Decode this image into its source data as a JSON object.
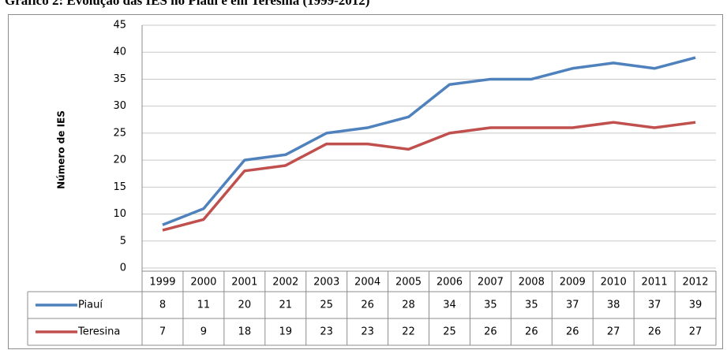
{
  "chart_data": {
    "type": "line",
    "title": "Gráfico 2: Evolução das IES no Piauí e em Teresina (1999-2012)",
    "y_label": "Número de IES",
    "categories": [
      "1999",
      "2000",
      "2001",
      "2002",
      "2003",
      "2004",
      "2005",
      "2006",
      "2007",
      "2008",
      "2009",
      "2010",
      "2011",
      "2012"
    ],
    "series": [
      {
        "name": "Piauí",
        "color": "#4f81bd",
        "values": [
          8,
          11,
          20,
          21,
          25,
          26,
          28,
          34,
          35,
          35,
          37,
          38,
          37,
          39
        ]
      },
      {
        "name": "Teresina",
        "color": "#c0504d",
        "values": [
          7,
          9,
          18,
          19,
          23,
          23,
          22,
          25,
          26,
          26,
          26,
          27,
          26,
          27
        ]
      }
    ],
    "ylim": [
      0,
      45
    ],
    "yticks": [
      0,
      5,
      10,
      15,
      20,
      25,
      30,
      35,
      40,
      45
    ],
    "grid": true,
    "data_table": true
  }
}
